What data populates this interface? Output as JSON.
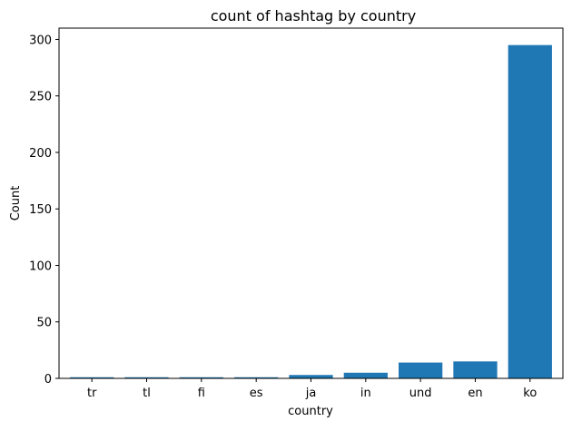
{
  "chart_data": {
    "type": "bar",
    "title": "count of hashtag by country",
    "xlabel": "country",
    "ylabel": "Count",
    "categories": [
      "tr",
      "tl",
      "fi",
      "es",
      "ja",
      "in",
      "und",
      "en",
      "ko"
    ],
    "values": [
      1,
      1,
      1,
      1,
      3,
      5,
      14,
      15,
      295
    ],
    "ylim": [
      0,
      310
    ],
    "yticks": [
      0,
      50,
      100,
      150,
      200,
      250,
      300
    ],
    "grid": false,
    "bar_color": "#1f77b4"
  }
}
